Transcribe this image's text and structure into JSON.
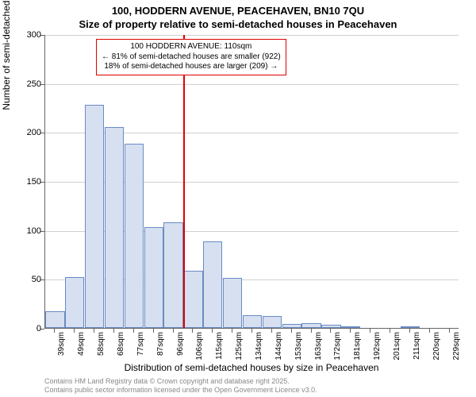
{
  "title": "100, HODDERN AVENUE, PEACEHAVEN, BN10 7QU",
  "subtitle": "Size of property relative to semi-detached houses in Peacehaven",
  "y_axis": {
    "label": "Number of semi-detached properties",
    "min": 0,
    "max": 300,
    "ticks": [
      0,
      50,
      100,
      150,
      200,
      250,
      300
    ]
  },
  "x_axis": {
    "label": "Distribution of semi-detached houses by size in Peacehaven",
    "categories": [
      "39sqm",
      "49sqm",
      "58sqm",
      "68sqm",
      "77sqm",
      "87sqm",
      "96sqm",
      "106sqm",
      "115sqm",
      "125sqm",
      "134sqm",
      "144sqm",
      "153sqm",
      "163sqm",
      "172sqm",
      "181sqm",
      "192sqm",
      "201sqm",
      "211sqm",
      "220sqm",
      "229sqm"
    ]
  },
  "bars": {
    "values": [
      17,
      52,
      228,
      205,
      188,
      103,
      108,
      58,
      88,
      51,
      13,
      12,
      4,
      5,
      3,
      2,
      0,
      0,
      2,
      0,
      0
    ],
    "fill_color": "#d6e0f0",
    "border_color": "#6a8bc4"
  },
  "reference": {
    "category_index": 7,
    "line_color": "#e00000",
    "box_lines": [
      "100 HODDERN AVENUE: 110sqm",
      "← 81% of semi-detached houses are smaller (922)",
      "18% of semi-detached houses are larger (209) →"
    ]
  },
  "style": {
    "background_color": "#ffffff",
    "grid_color": "#d0d0d0",
    "axis_color": "#666666",
    "text_color": "#000000",
    "title_fontsize": 13,
    "label_fontsize": 12,
    "tick_fontsize": 11,
    "footer_color": "#888888"
  },
  "footer": {
    "line1": "Contains HM Land Registry data © Crown copyright and database right 2025.",
    "line2": "Contains public sector information licensed under the Open Government Licence v3.0."
  }
}
